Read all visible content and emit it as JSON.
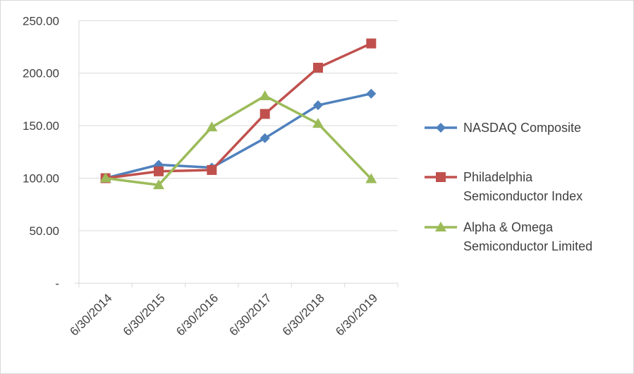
{
  "chart_data": {
    "type": "line",
    "title": "",
    "xlabel": "",
    "ylabel": "",
    "categories": [
      "6/30/2014",
      "6/30/2015",
      "6/30/2016",
      "6/30/2017",
      "6/30/2018",
      "6/30/2019"
    ],
    "ylim": [
      0,
      250
    ],
    "yticks": [
      0,
      50,
      100,
      150,
      200,
      250
    ],
    "ytick_labels": [
      "-",
      "50.00",
      "100.00",
      "150.00",
      "200.00",
      "250.00"
    ],
    "grid": true,
    "legend_position": "right",
    "series": [
      {
        "name": "NASDAQ Composite",
        "color": "#4f81bd",
        "marker": "diamond",
        "values": [
          100,
          112.8,
          110.1,
          138.1,
          169.5,
          180.5
        ]
      },
      {
        "name": "Philadelphia Semiconductor Index",
        "legend_lines": [
          "Philadelphia",
          "Semiconductor Index"
        ],
        "color": "#c0504d",
        "marker": "square",
        "values": [
          100,
          106.5,
          107.8,
          161.2,
          205.2,
          228.3
        ]
      },
      {
        "name": "Alpha & Omega Semiconductor Limited",
        "legend_lines": [
          "Alpha & Omega",
          "Semiconductor Limited"
        ],
        "color": "#9bbb59",
        "marker": "triangle",
        "values": [
          100,
          93.5,
          148.6,
          178.3,
          152.0,
          99.3
        ]
      }
    ]
  }
}
